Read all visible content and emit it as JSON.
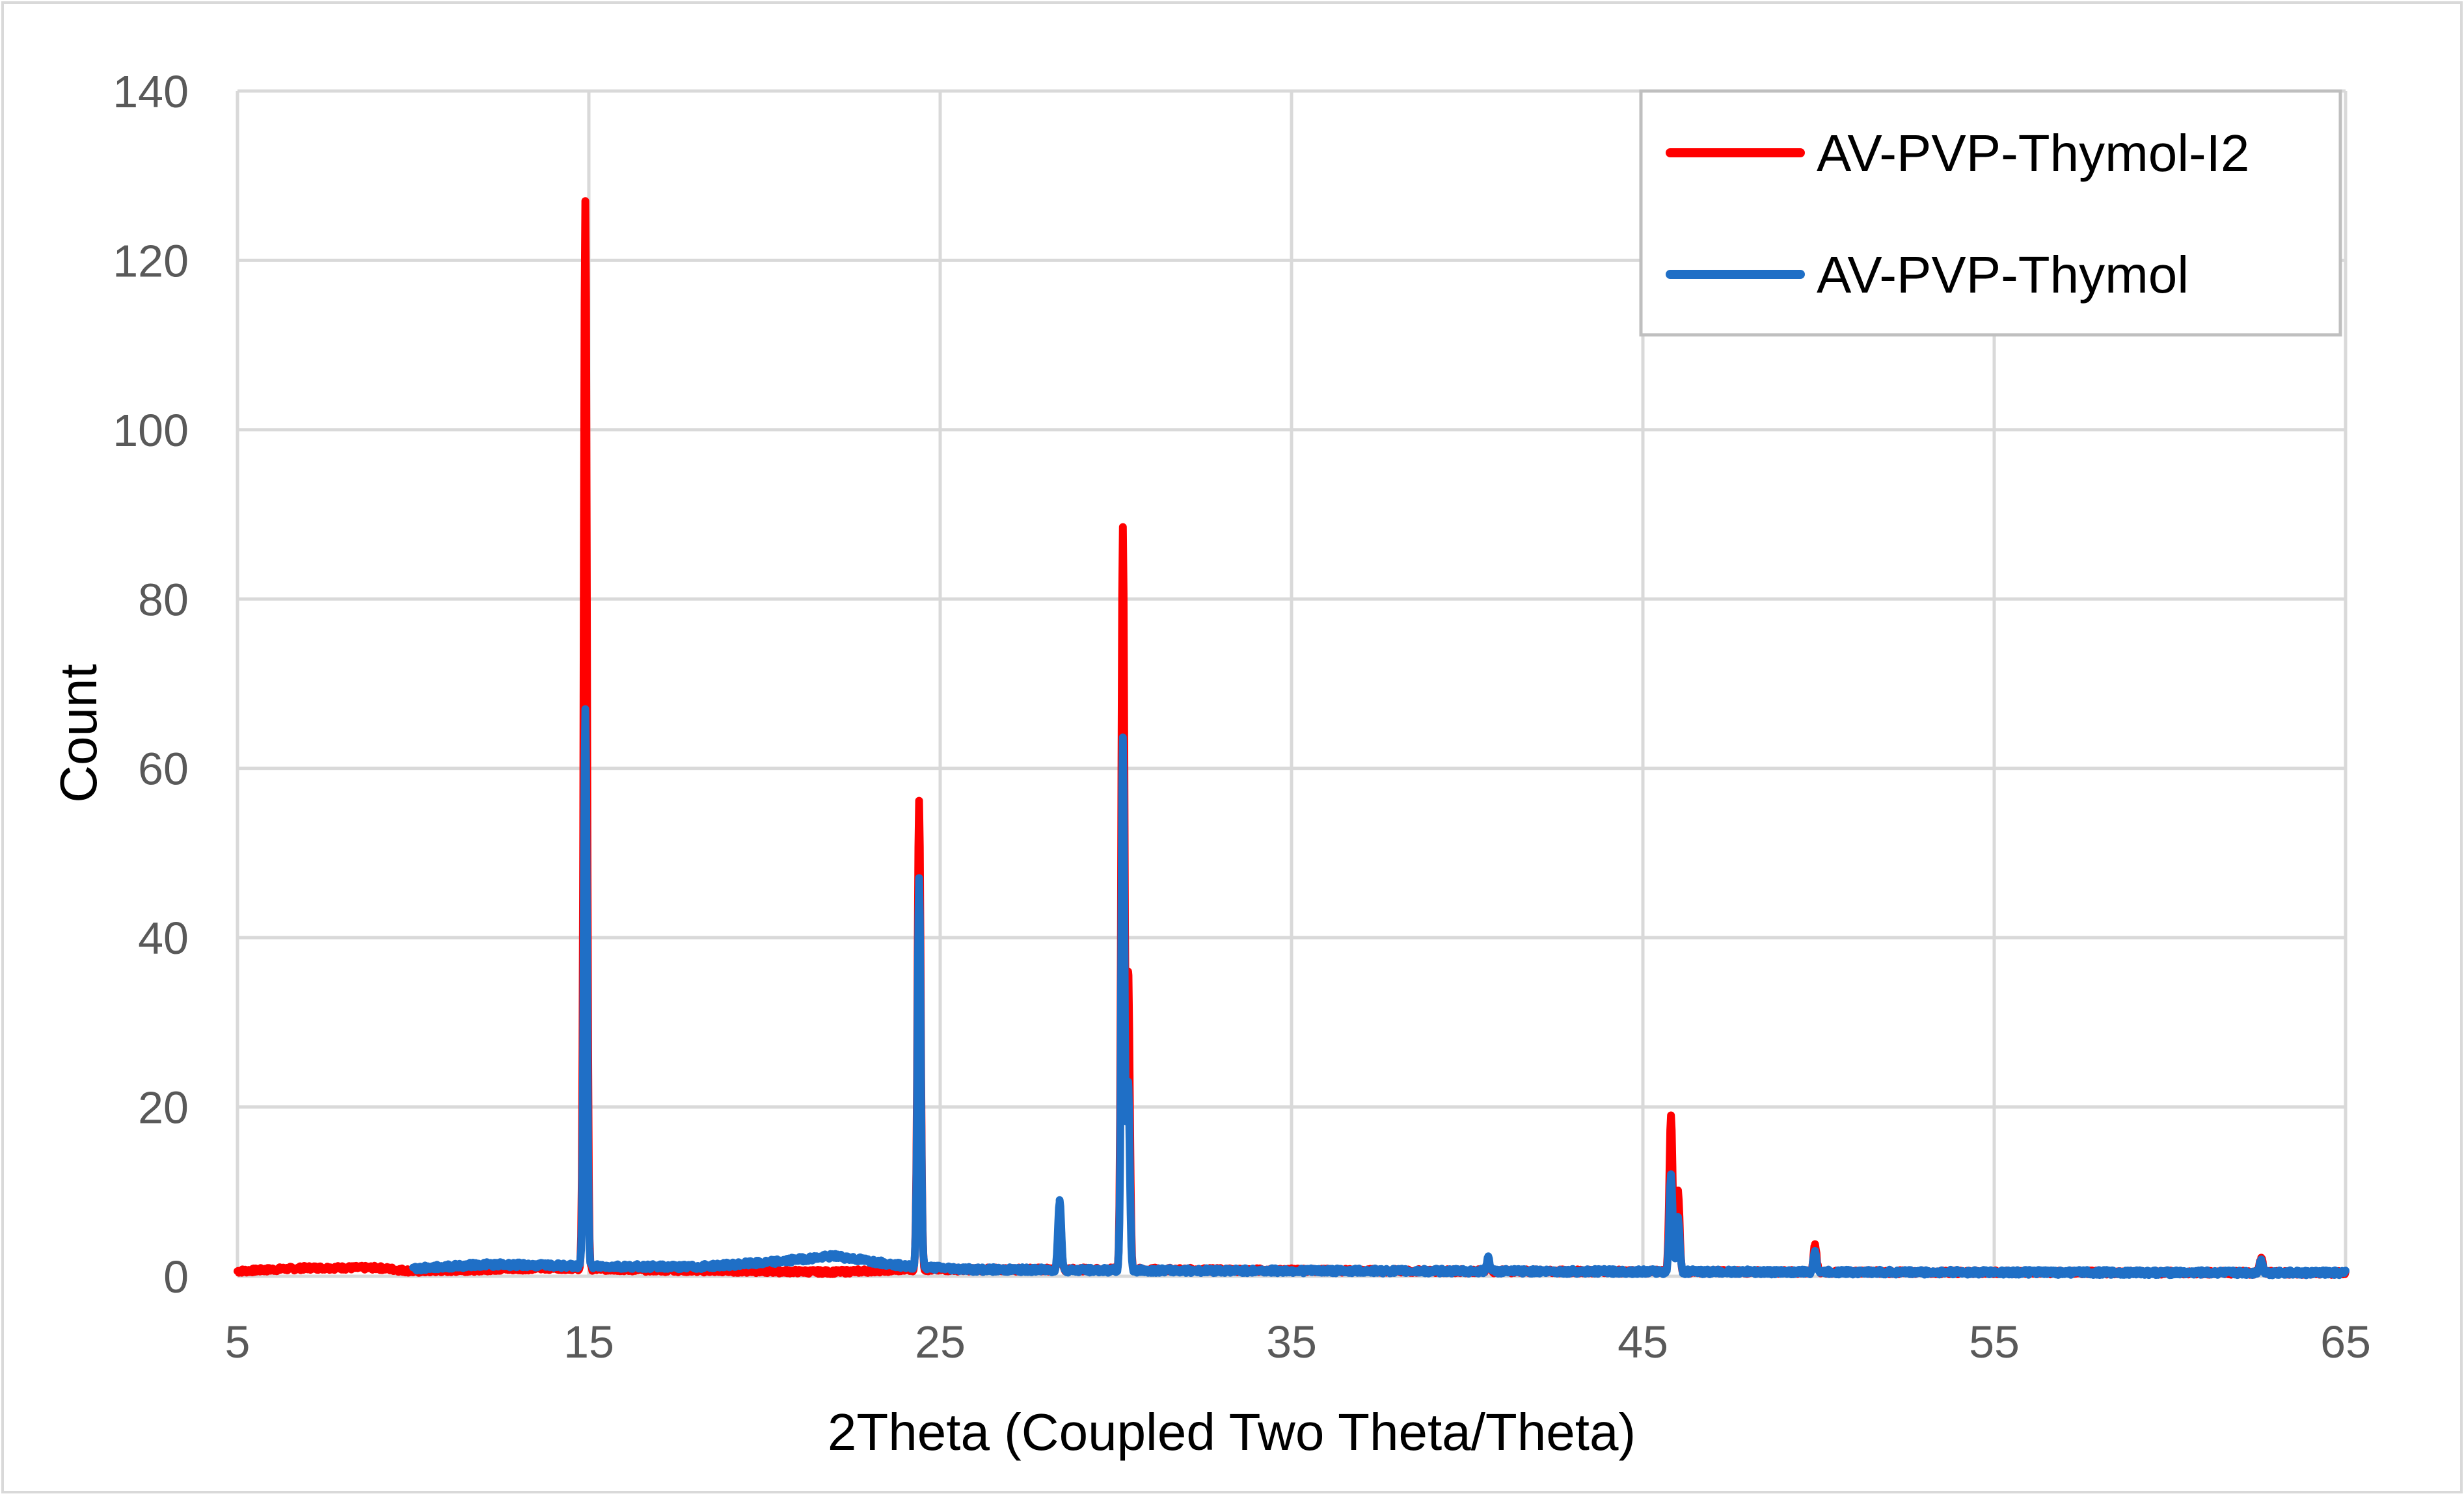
{
  "chart_data": {
    "type": "line",
    "title": "",
    "xlabel": "2Theta (Coupled Two Theta/Theta)",
    "ylabel": "Count",
    "xlim": [
      5,
      65
    ],
    "ylim": [
      0,
      140
    ],
    "x_ticks": [
      5,
      15,
      25,
      35,
      45,
      55,
      65
    ],
    "y_ticks": [
      0,
      20,
      40,
      60,
      80,
      100,
      120,
      140
    ],
    "grid": true,
    "legend_position": "top-right",
    "series": [
      {
        "name": "AV-PVP-Thymol-I2",
        "color": "#ff0000",
        "start": 5,
        "end": 65,
        "baseline": [
          [
            5,
            0.6
          ],
          [
            7,
            1.0
          ],
          [
            9,
            1.0
          ],
          [
            10,
            0.6
          ],
          [
            14,
            1.0
          ],
          [
            16,
            0.8
          ],
          [
            20,
            0.6
          ],
          [
            22,
            0.5
          ],
          [
            24,
            0.8
          ],
          [
            30,
            0.8
          ],
          [
            40,
            0.6
          ],
          [
            50,
            0.5
          ],
          [
            65,
            0.4
          ]
        ],
        "noise": 0.5,
        "peaks": [
          {
            "x": 14.9,
            "y": 127
          },
          {
            "x": 24.4,
            "y": 56
          },
          {
            "x": 28.4,
            "y": 8
          },
          {
            "x": 30.2,
            "y": 88.5
          },
          {
            "x": 30.35,
            "y": 36
          },
          {
            "x": 40.6,
            "y": 1.8
          },
          {
            "x": 45.8,
            "y": 19
          },
          {
            "x": 46.0,
            "y": 10
          },
          {
            "x": 49.9,
            "y": 3.6
          },
          {
            "x": 62.6,
            "y": 2.1
          }
        ]
      },
      {
        "name": "AV-PVP-Thymol",
        "color": "#1f6fc6",
        "start": 10,
        "end": 65,
        "baseline": [
          [
            10,
            0.9
          ],
          [
            12,
            1.4
          ],
          [
            15,
            1.2
          ],
          [
            18,
            1.1
          ],
          [
            20,
            1.6
          ],
          [
            22,
            2.4
          ],
          [
            24,
            1.2
          ],
          [
            26,
            0.8
          ],
          [
            30,
            0.7
          ],
          [
            40,
            0.6
          ],
          [
            50,
            0.5
          ],
          [
            65,
            0.4
          ]
        ],
        "noise": 0.6,
        "peaks": [
          {
            "x": 14.9,
            "y": 67
          },
          {
            "x": 24.4,
            "y": 47
          },
          {
            "x": 28.4,
            "y": 9
          },
          {
            "x": 30.2,
            "y": 63.5
          },
          {
            "x": 30.35,
            "y": 23
          },
          {
            "x": 40.6,
            "y": 2.2
          },
          {
            "x": 45.8,
            "y": 12
          },
          {
            "x": 46.0,
            "y": 7
          },
          {
            "x": 49.9,
            "y": 3.0
          },
          {
            "x": 62.6,
            "y": 2.0
          }
        ]
      }
    ]
  }
}
